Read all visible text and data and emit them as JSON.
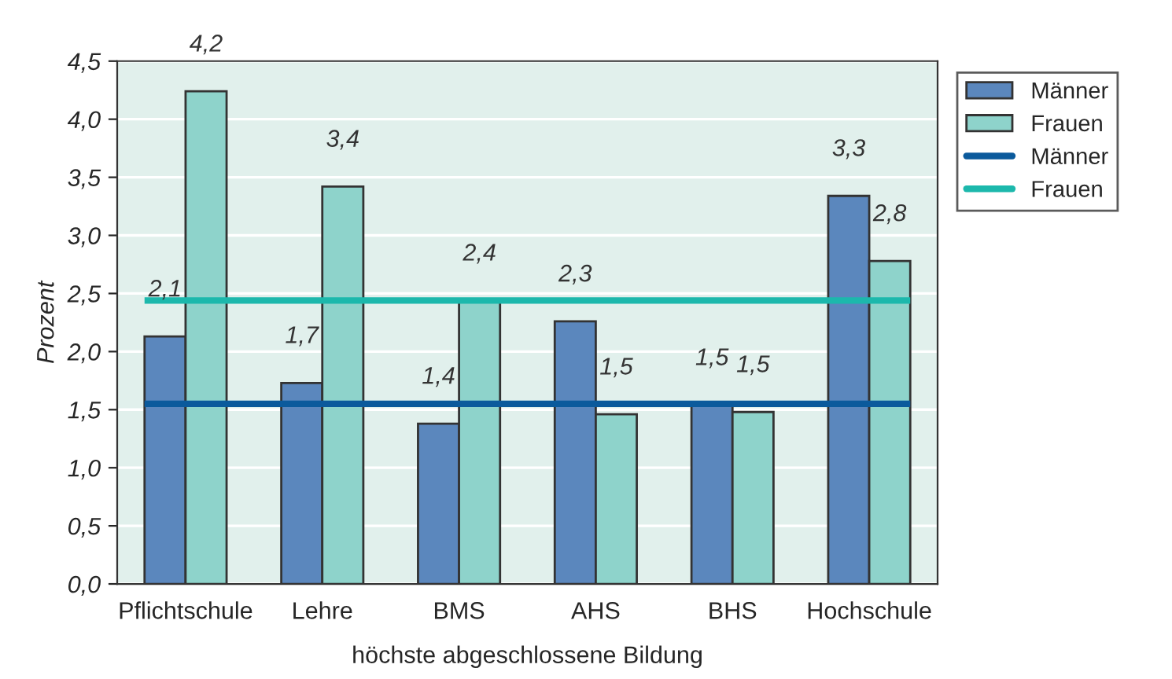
{
  "chart_data": {
    "type": "bar",
    "xlabel": "höchste abgeschlossene Bildung",
    "ylabel": "Prozent",
    "categories": [
      "Pflichtschule",
      "Lehre",
      "BMS",
      "AHS",
      "BHS",
      "Hochschule"
    ],
    "series": [
      {
        "name": "Männer",
        "color": "#5b87bd",
        "values": [
          2.13,
          1.73,
          1.38,
          2.26,
          1.54,
          3.34
        ],
        "value_labels": [
          "2,1",
          "1,7",
          "1,4",
          "2,3",
          "1,5",
          "3,3"
        ]
      },
      {
        "name": "Frauen",
        "color": "#8ed3cb",
        "values": [
          4.24,
          3.42,
          2.44,
          1.46,
          1.48,
          2.78
        ],
        "value_labels": [
          "4,2",
          "3,4",
          "2,4",
          "1,5",
          "1,5",
          "2,8"
        ]
      }
    ],
    "ref_lines": [
      {
        "axis": "y",
        "value": 1.55,
        "label": "Männer",
        "color": "#0b5a9c"
      },
      {
        "axis": "y",
        "value": 2.44,
        "label": "Frauen",
        "color": "#1cb8ac"
      }
    ],
    "ylim": [
      0,
      4.5
    ],
    "yticks": [
      {
        "value": 0,
        "label": "0,0"
      },
      {
        "value": 0.5,
        "label": "0,5"
      },
      {
        "value": 1,
        "label": "1,0"
      },
      {
        "value": 1.5,
        "label": "1,5"
      },
      {
        "value": 2,
        "label": "2,0"
      },
      {
        "value": 2.5,
        "label": "2,5"
      },
      {
        "value": 3,
        "label": "3,0"
      },
      {
        "value": 3.5,
        "label": "3,5"
      },
      {
        "value": 4,
        "label": "4,0"
      },
      {
        "value": 4.5,
        "label": "4,5"
      }
    ],
    "grid": "y",
    "legend": "top right"
  }
}
